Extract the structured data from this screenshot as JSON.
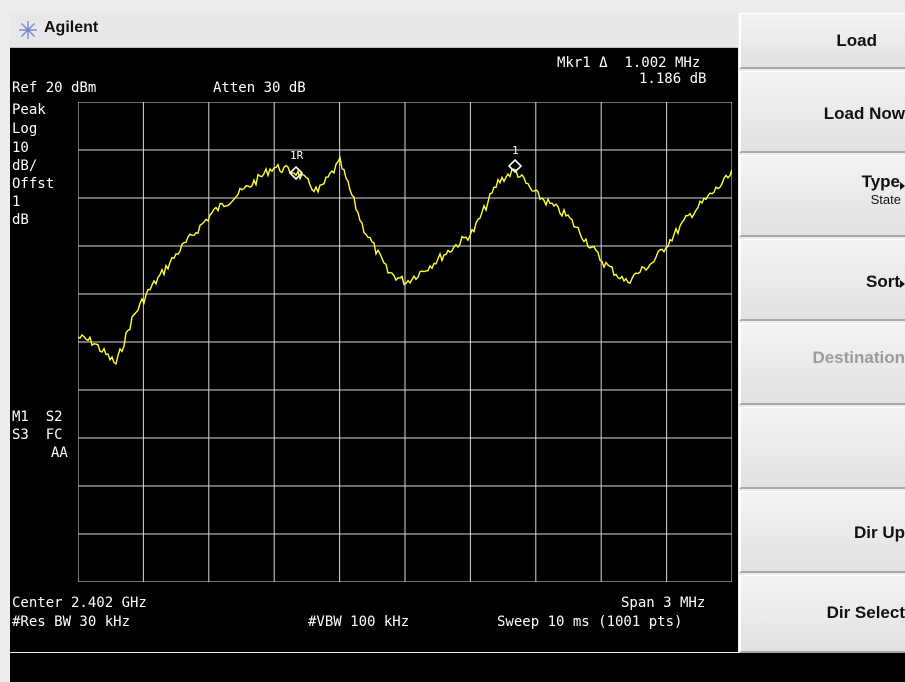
{
  "brand": "Agilent",
  "marker_readout": {
    "line1": "Mkr1 Δ  1.002 MHz",
    "line2": "1.186 dB"
  },
  "ref": "Ref 20 dBm",
  "atten": "Atten 30 dB",
  "left_annotations": {
    "peak": "Peak",
    "log": "Log",
    "scale_value": "10",
    "scale_unit": "dB/",
    "offst": "Offst",
    "offst_value": "1",
    "offst_unit": "dB"
  },
  "status_flags": {
    "line1": "M1  S2",
    "line2": "S3  FC",
    "line3": "AA"
  },
  "marker_labels": {
    "ref_marker": "1R",
    "marker1": "1"
  },
  "footer": {
    "center": "Center 2.402 GHz",
    "span": "Span 3 MHz",
    "res_bw": "#Res BW 30 kHz",
    "vbw": "#VBW 100 kHz",
    "sweep": "Sweep 10 ms (1001 pts)"
  },
  "trace_color": "#ffff33",
  "softkeys": [
    {
      "label": "Load",
      "enabled": true
    },
    {
      "label": "Load Now",
      "enabled": true
    },
    {
      "label": "Type",
      "sub": "State",
      "enabled": true
    },
    {
      "label": "Sort",
      "enabled": true
    },
    {
      "label": "Destination",
      "enabled": false
    },
    {
      "label": "",
      "enabled": true
    },
    {
      "label": "Dir Up",
      "enabled": true
    },
    {
      "label": "Dir Select",
      "enabled": true
    }
  ]
}
